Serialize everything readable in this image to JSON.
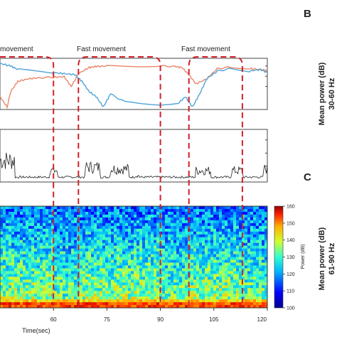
{
  "figure": {
    "panel_labels": [
      "B",
      "C"
    ],
    "movement_labels": [
      "movement",
      "Fast movement",
      "Fast movement"
    ],
    "right_axis_labels": [
      {
        "line1": "Mean power (dB)",
        "line2": "30-60 Hz"
      },
      {
        "line1": "Mean power (dB)",
        "line2": "61-90 Hz"
      }
    ],
    "colorbar_label": "Power (dB)"
  },
  "chart_data": [
    {
      "type": "line",
      "title": "",
      "xlim": [
        45,
        120
      ],
      "series": [
        {
          "color": "#e8866a",
          "x": [
            45,
            47,
            48,
            50,
            53,
            56,
            60,
            63,
            65,
            67,
            70,
            72,
            75,
            80,
            85,
            90,
            94,
            96,
            98,
            100,
            103,
            106,
            110,
            115,
            118,
            120
          ],
          "y": [
            0.25,
            0.05,
            0.35,
            0.55,
            0.6,
            0.62,
            0.63,
            0.64,
            0.45,
            0.7,
            0.82,
            0.84,
            0.85,
            0.85,
            0.85,
            0.85,
            0.84,
            0.82,
            0.68,
            0.5,
            0.6,
            0.8,
            0.83,
            0.8,
            0.78,
            0.76
          ]
        },
        {
          "color": "#4fa3d8",
          "x": [
            45,
            48,
            50,
            55,
            60,
            63,
            66,
            68,
            70,
            72,
            74,
            76,
            80,
            85,
            90,
            95,
            97,
            99,
            101,
            103,
            106,
            110,
            115,
            118,
            120
          ],
          "y": [
            0.9,
            0.85,
            0.78,
            0.75,
            0.72,
            0.7,
            0.68,
            0.55,
            0.35,
            0.25,
            0.05,
            0.3,
            0.15,
            0.12,
            0.1,
            0.12,
            0.25,
            0.05,
            0.3,
            0.6,
            0.75,
            0.8,
            0.75,
            0.78,
            0.72
          ]
        }
      ]
    },
    {
      "type": "line",
      "xlim": [
        45,
        120
      ],
      "series": [
        {
          "color": "#222222",
          "note": "activity trace"
        }
      ]
    },
    {
      "type": "heatmap",
      "xlabel": "Time(sec)",
      "xlim": [
        45,
        120
      ],
      "xticks": [
        60,
        75,
        90,
        105,
        120
      ],
      "xtick_labels": [
        "60",
        "75",
        "90",
        "105",
        "120"
      ],
      "colorbar": {
        "min": 100,
        "max": 160,
        "ticks": [
          100,
          110,
          120,
          130,
          140,
          150,
          160
        ],
        "label": "Power (dB)"
      }
    }
  ],
  "fast_movement_windows": [
    [
      45,
      60
    ],
    [
      67,
      90
    ],
    [
      98,
      113
    ]
  ]
}
